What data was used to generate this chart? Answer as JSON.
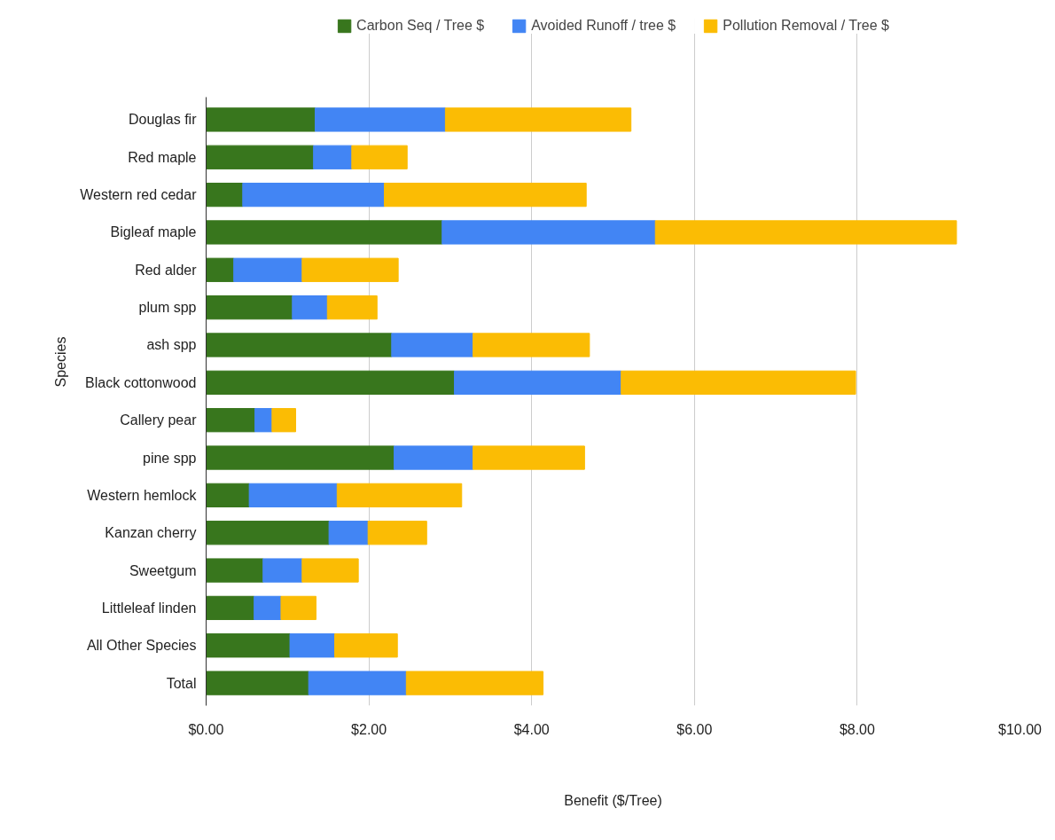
{
  "chart_data": {
    "type": "bar",
    "orientation": "horizontal",
    "stacked": true,
    "xlabel": "Benefit ($/Tree)",
    "ylabel": "Species",
    "categories": [
      "Douglas fir",
      "Red maple",
      "Western red cedar",
      "Bigleaf maple",
      "Red alder",
      "plum spp",
      "ash spp",
      "Black cottonwood",
      "Callery pear",
      "pine spp",
      "Western hemlock",
      "Kanzan cherry",
      "Sweetgum",
      "Littleleaf linden",
      "All Other Species",
      "Total"
    ],
    "series": [
      {
        "name": "Carbon Seq / Tree $",
        "color": "#38761d",
        "values": [
          1.34,
          1.32,
          0.45,
          2.9,
          0.34,
          1.06,
          2.28,
          3.05,
          0.6,
          2.31,
          0.53,
          1.51,
          0.7,
          0.59,
          1.03,
          1.26
        ]
      },
      {
        "name": "Avoided Runoff / tree $",
        "color": "#4285f4",
        "values": [
          1.6,
          0.47,
          1.74,
          2.62,
          0.84,
          0.43,
          1.0,
          2.05,
          0.21,
          0.97,
          1.08,
          0.48,
          0.48,
          0.33,
          0.55,
          1.2
        ]
      },
      {
        "name": "Pollution Removal / Tree $",
        "color": "#fbbc04",
        "values": [
          2.28,
          0.68,
          2.48,
          3.7,
          1.18,
          0.61,
          1.43,
          2.88,
          0.29,
          1.37,
          1.53,
          0.72,
          0.69,
          0.43,
          0.77,
          1.68
        ]
      }
    ],
    "xlim": [
      0,
      10
    ],
    "xticks": [
      {
        "value": 0,
        "label": "$0.00"
      },
      {
        "value": 2,
        "label": "$2.00"
      },
      {
        "value": 4,
        "label": "$4.00"
      },
      {
        "value": 6,
        "label": "$6.00"
      },
      {
        "value": 8,
        "label": "$8.00"
      },
      {
        "value": 10,
        "label": "$10.00"
      }
    ],
    "grid": "x",
    "legend": "top"
  }
}
